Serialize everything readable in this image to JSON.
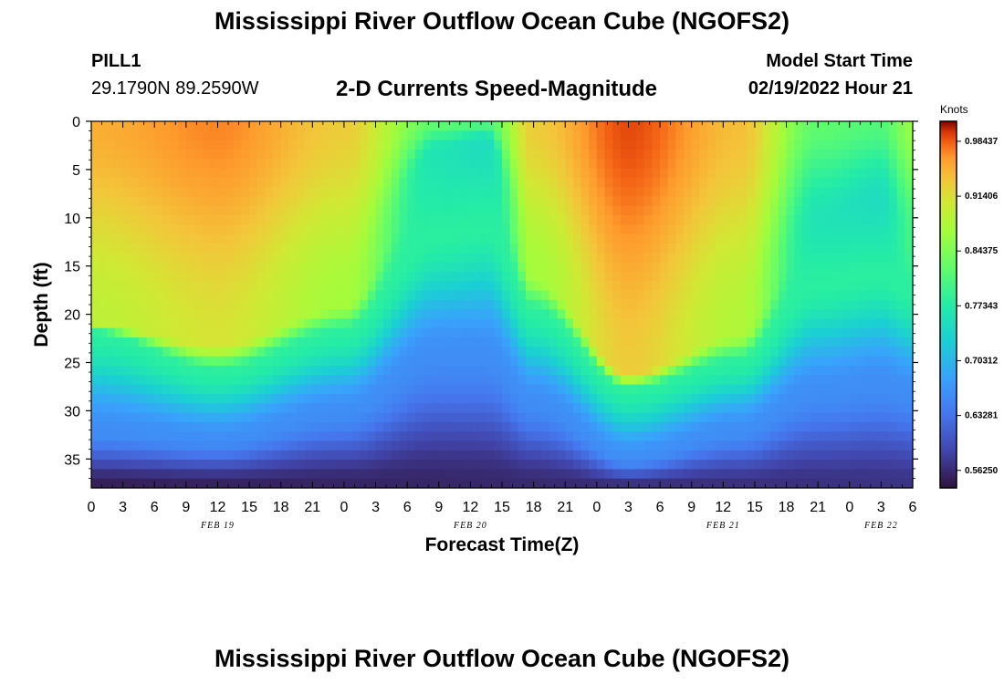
{
  "header": {
    "title": "Mississippi River Outflow Ocean Cube (NGOFS2)",
    "station": "PILL1",
    "coordinates": "29.1790N  89.2590W",
    "variable_title": "2-D Currents Speed-Magnitude",
    "model_start_label": "Model Start Time",
    "model_start_value": "02/19/2022 Hour 21"
  },
  "footer": {
    "title": "Mississippi River Outflow Ocean Cube (NGOFS2)"
  },
  "chart_data": {
    "type": "heatmap",
    "xlabel": "Forecast Time(Z)",
    "ylabel": "Depth (ft)",
    "x_tick_labels": [
      "0",
      "3",
      "6",
      "9",
      "12",
      "15",
      "18",
      "21",
      "0",
      "3",
      "6",
      "9",
      "12",
      "15",
      "18",
      "21",
      "0",
      "3",
      "6",
      "9",
      "12",
      "15",
      "18",
      "21",
      "0",
      "3",
      "6"
    ],
    "date_labels": [
      {
        "label": "FEB 19",
        "tick_index": 4
      },
      {
        "label": "FEB 20",
        "tick_index": 12
      },
      {
        "label": "FEB 21",
        "tick_index": 20
      },
      {
        "label": "FEB 22",
        "tick_index": 25
      }
    ],
    "y_ticks": [
      0,
      5,
      10,
      15,
      20,
      25,
      30,
      35
    ],
    "ylim": [
      0,
      38
    ],
    "y_inverted": true,
    "colorbar": {
      "units": "Knots",
      "range": [
        0.54,
        1.01
      ],
      "tick_values": [
        0.98437,
        0.914,
        0.84375,
        0.77343,
        0.70312,
        0.63281,
        0.5625
      ],
      "tick_labels": [
        "0.98437",
        "0.91406",
        "0.84375",
        "0.77343",
        "0.70312",
        "0.63281",
        "0.56250"
      ]
    },
    "speed_model": {
      "surface_knots": [
        [
          0,
          0.95
        ],
        [
          4,
          0.97
        ],
        [
          8,
          0.93
        ],
        [
          11,
          0.82
        ],
        [
          12.5,
          0.81
        ],
        [
          14,
          0.93
        ],
        [
          17,
          0.99
        ],
        [
          20.5,
          0.94
        ],
        [
          23,
          0.82
        ],
        [
          25,
          0.81
        ],
        [
          26,
          0.86
        ]
      ],
      "bottom_knots": [
        0.55,
        0.57
      ],
      "high_layer_depth_ft": [
        [
          0,
          21
        ],
        [
          4,
          23
        ],
        [
          8,
          19
        ],
        [
          11,
          3
        ],
        [
          12.5,
          2
        ],
        [
          14,
          16
        ],
        [
          17,
          26
        ],
        [
          20.5,
          22
        ],
        [
          23,
          10
        ],
        [
          25,
          8
        ],
        [
          26,
          12
        ]
      ],
      "mid_layer_depth_ft": [
        [
          0,
          22
        ],
        [
          4,
          26
        ],
        [
          8,
          22
        ],
        [
          11,
          12
        ],
        [
          12.5,
          11
        ],
        [
          14,
          20
        ],
        [
          17,
          28
        ],
        [
          20.5,
          25
        ],
        [
          23,
          17
        ],
        [
          25,
          16
        ],
        [
          26,
          18
        ]
      ],
      "low_layer_depth_ft": [
        [
          0,
          32
        ],
        [
          4,
          33
        ],
        [
          8,
          30
        ],
        [
          11,
          24
        ],
        [
          12.5,
          24
        ],
        [
          14,
          29
        ],
        [
          17,
          35
        ],
        [
          20.5,
          32
        ],
        [
          23,
          28
        ],
        [
          25,
          27
        ],
        [
          26,
          28
        ]
      ]
    }
  }
}
